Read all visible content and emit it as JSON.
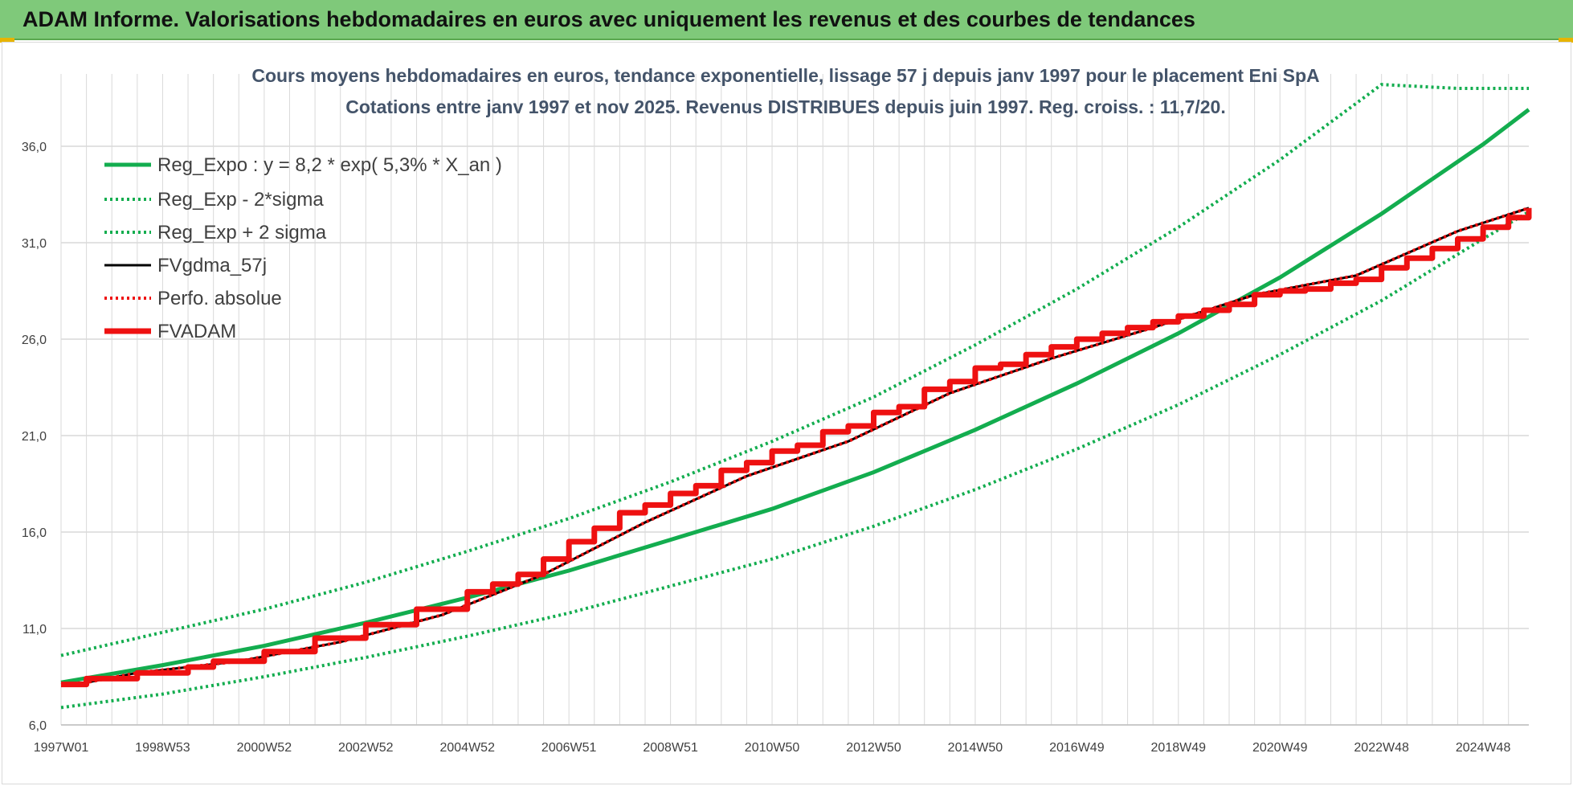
{
  "page": {
    "banner_title": "ADAM Informe. Valorisations hebdomadaires en euros avec uniquement les revenus et des courbes de tendances"
  },
  "chart_data": {
    "type": "line",
    "title_lines": [
      "Cours moyens hebdomadaires en euros, tendance exponentielle, lissage 57 j depuis janv 1997 pour le placement Eni SpA",
      "Cotations entre janv 1997 et nov 2025. Revenus DISTRIBUES depuis juin 1997. Reg. croiss. : 11,7/20."
    ],
    "xlabel": "",
    "ylabel": "",
    "x_range_years": [
      1997.0,
      2025.9
    ],
    "x_tick_labels": [
      "1997W01",
      "1998W53",
      "2000W52",
      "2002W52",
      "2004W52",
      "2006W51",
      "2008W51",
      "2010W50",
      "2012W50",
      "2014W50",
      "2016W49",
      "2018W49",
      "2020W49",
      "2022W48",
      "2024W48"
    ],
    "x_tick_years": [
      1997.0,
      1999.0,
      2001.0,
      2003.0,
      2005.0,
      2007.0,
      2009.0,
      2011.0,
      2013.0,
      2015.0,
      2017.0,
      2019.0,
      2021.0,
      2023.0,
      2025.0
    ],
    "ylim": [
      6.0,
      39.0
    ],
    "y_ticks": [
      6.0,
      11.0,
      16.0,
      21.0,
      26.0,
      31.0,
      36.0
    ],
    "y_tick_labels": [
      "6,0",
      "11,0",
      "16,0",
      "21,0",
      "26,0",
      "31,0",
      "36,0"
    ],
    "grid": true,
    "legend_position": "top-left",
    "colors": {
      "trend_green": "#13ad4f",
      "black_line": "#000000",
      "red_line": "#ee1111",
      "grid": "#d9d9d9",
      "banner_green": "#7fc97a"
    },
    "series": [
      {
        "name": "Reg_Expo : y = 8,2 * exp( 5,3% *  X_an )",
        "style": "solid",
        "color": "#13ad4f",
        "x": [
          1997.0,
          1999.0,
          2001.0,
          2003.0,
          2005.0,
          2007.0,
          2009.0,
          2011.0,
          2013.0,
          2015.0,
          2017.0,
          2019.0,
          2021.0,
          2023.0,
          2025.0,
          2025.9
        ],
        "y": [
          8.2,
          9.1,
          10.1,
          11.3,
          12.6,
          14.0,
          15.6,
          17.2,
          19.1,
          21.3,
          23.7,
          26.3,
          29.2,
          32.5,
          36.1,
          37.9
        ]
      },
      {
        "name": "Reg_Exp - 2*sigma",
        "style": "dotted",
        "color": "#13ad4f",
        "x": [
          1997.0,
          1999.0,
          2001.0,
          2003.0,
          2005.0,
          2007.0,
          2009.0,
          2011.0,
          2013.0,
          2015.0,
          2017.0,
          2019.0,
          2021.0,
          2023.0,
          2025.0,
          2025.9
        ],
        "y": [
          6.9,
          7.6,
          8.5,
          9.5,
          10.6,
          11.8,
          13.2,
          14.6,
          16.3,
          18.2,
          20.3,
          22.6,
          25.2,
          28.0,
          31.2,
          32.6
        ]
      },
      {
        "name": "Reg_Exp + 2 sigma",
        "style": "dotted",
        "color": "#13ad4f",
        "x": [
          1997.0,
          1999.0,
          2001.0,
          2003.0,
          2005.0,
          2007.0,
          2009.0,
          2011.0,
          2013.0,
          2015.0,
          2017.0,
          2019.0,
          2021.0,
          2023.0,
          2024.5,
          2025.9
        ],
        "y": [
          9.6,
          10.8,
          12.0,
          13.4,
          15.0,
          16.7,
          18.6,
          20.7,
          23.0,
          25.7,
          28.6,
          31.8,
          35.3,
          39.2,
          39.0,
          39.0
        ]
      },
      {
        "name": "FVgdma_57j",
        "style": "solid",
        "color": "#000000",
        "x": [
          1997.0,
          1997.5,
          1998.5,
          2000.5,
          2002.5,
          2004.5,
          2006.5,
          2008.5,
          2010.5,
          2012.5,
          2014.5,
          2016.5,
          2018.5,
          2020.5,
          2022.5,
          2024.5,
          2025.9
        ],
        "y": [
          8.1,
          8.2,
          8.7,
          9.3,
          10.3,
          11.7,
          13.8,
          16.5,
          18.9,
          20.7,
          23.2,
          25.0,
          26.6,
          28.3,
          29.3,
          31.6,
          32.8
        ]
      },
      {
        "name": "Perfo. absolue",
        "style": "dotted",
        "color": "#ee1111",
        "x": [
          1997.0,
          1997.5,
          1998.5,
          2000.5,
          2002.5,
          2004.5,
          2006.5,
          2008.5,
          2010.5,
          2012.5,
          2014.5,
          2016.5,
          2018.5,
          2020.5,
          2022.5,
          2024.5,
          2025.9
        ],
        "y": [
          8.1,
          8.2,
          8.7,
          9.3,
          10.3,
          11.7,
          13.8,
          16.5,
          18.9,
          20.7,
          23.2,
          25.0,
          26.6,
          28.3,
          29.3,
          31.6,
          32.8
        ]
      },
      {
        "name": "FVADAM",
        "style": "step",
        "color": "#ee1111",
        "x": [
          1997.0,
          1997.5,
          1998.0,
          1998.5,
          1999.0,
          1999.5,
          2000.0,
          2000.5,
          2001.0,
          2001.5,
          2002.0,
          2002.5,
          2003.0,
          2003.5,
          2004.0,
          2004.5,
          2005.0,
          2005.5,
          2006.0,
          2006.5,
          2007.0,
          2007.5,
          2008.0,
          2008.5,
          2009.0,
          2009.5,
          2010.0,
          2010.5,
          2011.0,
          2011.5,
          2012.0,
          2012.5,
          2013.0,
          2013.5,
          2014.0,
          2014.5,
          2015.0,
          2015.5,
          2016.0,
          2016.5,
          2017.0,
          2017.5,
          2018.0,
          2018.5,
          2019.0,
          2019.5,
          2020.0,
          2020.5,
          2021.0,
          2021.5,
          2022.0,
          2022.5,
          2023.0,
          2023.5,
          2024.0,
          2024.5,
          2025.0,
          2025.5,
          2025.9
        ],
        "y": [
          8.1,
          8.4,
          8.4,
          8.7,
          8.7,
          9.0,
          9.3,
          9.3,
          9.8,
          9.8,
          10.5,
          10.5,
          11.2,
          11.2,
          12.0,
          12.0,
          12.9,
          13.3,
          13.8,
          14.6,
          15.5,
          16.2,
          17.0,
          17.4,
          18.0,
          18.4,
          19.2,
          19.6,
          20.2,
          20.5,
          21.2,
          21.5,
          22.2,
          22.5,
          23.4,
          23.8,
          24.5,
          24.7,
          25.2,
          25.6,
          26.0,
          26.3,
          26.6,
          26.9,
          27.2,
          27.5,
          27.8,
          28.3,
          28.5,
          28.6,
          28.9,
          29.1,
          29.7,
          30.2,
          30.7,
          31.2,
          31.8,
          32.3,
          32.8
        ]
      }
    ]
  }
}
